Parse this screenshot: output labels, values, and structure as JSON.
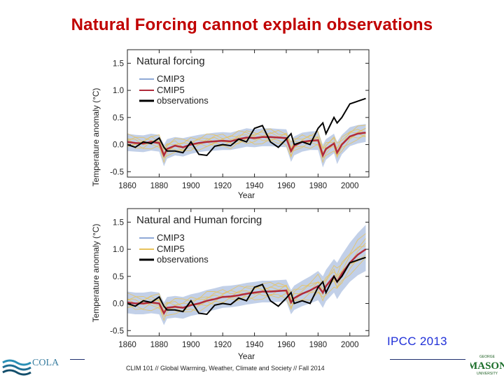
{
  "slide": {
    "title": "Natural Forcing cannot explain observations",
    "source": "IPCC 2013",
    "footer": "CLIM 101 // Global Warming, Weather, Climate and Society // Fall 2014",
    "logo_left_text": "COLA",
    "logo_right_text": "MASON",
    "logo_right_small_top": "GEORGE",
    "logo_right_small_bottom": "UNIVERSITY"
  },
  "colors": {
    "title": "#c00000",
    "source": "#1f2fd8",
    "cmip3": "#8fa9d6",
    "cmip5": "#e8c25a",
    "mean_red": "#b02a3a",
    "observations": "#000000"
  },
  "chart_data": [
    {
      "type": "line",
      "title": "Natural forcing",
      "xlabel": "Year",
      "ylabel": "Temperature anomaly (°C)",
      "xlim": [
        1860,
        2012
      ],
      "ylim": [
        -0.6,
        1.75
      ],
      "xticks": [
        1860,
        1880,
        1900,
        1920,
        1940,
        1960,
        1980,
        2000
      ],
      "yticks": [
        -0.5,
        0.0,
        0.5,
        1.0,
        1.5
      ],
      "ytick_labels": [
        "-0.5",
        "0.0",
        "0.5",
        "1.0",
        "1.5"
      ],
      "legend": [
        "CMIP3",
        "CMIP5",
        "observations"
      ],
      "legend_position": "top-left",
      "x": [
        1860,
        1865,
        1870,
        1875,
        1880,
        1883,
        1885,
        1890,
        1895,
        1900,
        1905,
        1910,
        1915,
        1920,
        1925,
        1930,
        1935,
        1940,
        1945,
        1950,
        1955,
        1960,
        1963,
        1965,
        1970,
        1975,
        1980,
        1983,
        1985,
        1990,
        1992,
        1995,
        2000,
        2005,
        2010
      ],
      "series": [
        {
          "name": "multi-model mean",
          "values": [
            0.05,
            0.03,
            0.02,
            0.05,
            0.03,
            -0.2,
            -0.08,
            -0.02,
            -0.05,
            0.0,
            0.03,
            0.05,
            0.06,
            0.07,
            0.06,
            0.1,
            0.13,
            0.12,
            0.14,
            0.14,
            0.13,
            0.12,
            -0.12,
            -0.02,
            0.05,
            0.07,
            0.08,
            -0.2,
            -0.08,
            0.02,
            -0.15,
            0.0,
            0.15,
            0.2,
            0.22
          ]
        },
        {
          "name": "observations",
          "values": [
            0.0,
            -0.05,
            0.05,
            0.02,
            0.12,
            -0.05,
            -0.12,
            -0.12,
            -0.15,
            0.05,
            -0.18,
            -0.2,
            -0.03,
            0.0,
            -0.02,
            0.1,
            0.05,
            0.3,
            0.35,
            0.05,
            -0.05,
            0.1,
            0.2,
            0.0,
            0.05,
            0.0,
            0.3,
            0.4,
            0.2,
            0.5,
            0.4,
            0.5,
            0.75,
            0.8,
            0.85
          ]
        },
        {
          "name": "CMIP5 upper",
          "values": [
            0.2,
            0.18,
            0.17,
            0.2,
            0.18,
            0.0,
            0.1,
            0.14,
            0.12,
            0.15,
            0.18,
            0.2,
            0.22,
            0.23,
            0.22,
            0.26,
            0.3,
            0.28,
            0.3,
            0.3,
            0.29,
            0.28,
            0.06,
            0.15,
            0.22,
            0.24,
            0.25,
            0.0,
            0.1,
            0.2,
            0.05,
            0.18,
            0.32,
            0.36,
            0.38
          ]
        },
        {
          "name": "CMIP5 lower",
          "values": [
            -0.12,
            -0.13,
            -0.14,
            -0.11,
            -0.13,
            -0.4,
            -0.26,
            -0.2,
            -0.22,
            -0.17,
            -0.14,
            -0.12,
            -0.11,
            -0.1,
            -0.1,
            -0.07,
            -0.04,
            -0.05,
            -0.03,
            -0.03,
            -0.04,
            -0.05,
            -0.32,
            -0.2,
            -0.13,
            -0.1,
            -0.1,
            -0.42,
            -0.28,
            -0.16,
            -0.36,
            -0.18,
            -0.03,
            0.02,
            0.05
          ]
        }
      ]
    },
    {
      "type": "line",
      "title": "Natural and Human forcing",
      "xlabel": "Year",
      "ylabel": "Temperature anomaly (°C)",
      "xlim": [
        1860,
        2012
      ],
      "ylim": [
        -0.6,
        1.75
      ],
      "xticks": [
        1860,
        1880,
        1900,
        1920,
        1940,
        1960,
        1980,
        2000
      ],
      "yticks": [
        -0.5,
        0.0,
        0.5,
        1.0,
        1.5
      ],
      "ytick_labels": [
        "-0.5",
        "0.0",
        "0.5",
        "1.0",
        "1.5"
      ],
      "legend": [
        "CMIP3",
        "CMIP5",
        "observations"
      ],
      "legend_position": "top-left",
      "x": [
        1860,
        1865,
        1870,
        1875,
        1880,
        1883,
        1885,
        1890,
        1895,
        1900,
        1905,
        1910,
        1915,
        1920,
        1925,
        1930,
        1935,
        1940,
        1945,
        1950,
        1955,
        1960,
        1963,
        1965,
        1970,
        1975,
        1980,
        1983,
        1985,
        1990,
        1992,
        1995,
        2000,
        2005,
        2010
      ],
      "series": [
        {
          "name": "multi-model mean",
          "values": [
            0.02,
            0.0,
            0.0,
            0.02,
            0.0,
            -0.18,
            -0.08,
            -0.06,
            -0.08,
            -0.03,
            0.0,
            0.05,
            0.08,
            0.12,
            0.13,
            0.15,
            0.18,
            0.2,
            0.22,
            0.22,
            0.23,
            0.24,
            0.02,
            0.1,
            0.18,
            0.24,
            0.32,
            0.2,
            0.32,
            0.5,
            0.4,
            0.55,
            0.75,
            0.9,
            1.0
          ]
        },
        {
          "name": "observations",
          "values": [
            0.0,
            -0.05,
            0.05,
            0.02,
            0.12,
            -0.05,
            -0.12,
            -0.12,
            -0.15,
            0.05,
            -0.18,
            -0.2,
            -0.03,
            0.0,
            -0.02,
            0.1,
            0.05,
            0.3,
            0.35,
            0.05,
            -0.05,
            0.1,
            0.2,
            0.0,
            0.05,
            0.0,
            0.3,
            0.4,
            0.2,
            0.5,
            0.4,
            0.5,
            0.75,
            0.8,
            0.85
          ]
        },
        {
          "name": "CMIP5 upper",
          "values": [
            0.22,
            0.2,
            0.2,
            0.22,
            0.2,
            0.02,
            0.12,
            0.14,
            0.12,
            0.17,
            0.2,
            0.25,
            0.28,
            0.32,
            0.33,
            0.35,
            0.38,
            0.4,
            0.42,
            0.42,
            0.43,
            0.44,
            0.25,
            0.33,
            0.42,
            0.5,
            0.6,
            0.5,
            0.62,
            0.82,
            0.75,
            0.9,
            1.12,
            1.3,
            1.45
          ]
        },
        {
          "name": "CMIP5 lower",
          "values": [
            -0.18,
            -0.2,
            -0.2,
            -0.18,
            -0.2,
            -0.4,
            -0.28,
            -0.26,
            -0.28,
            -0.23,
            -0.2,
            -0.15,
            -0.12,
            -0.08,
            -0.07,
            -0.05,
            -0.02,
            0.0,
            0.02,
            0.02,
            0.03,
            0.04,
            -0.2,
            -0.12,
            -0.05,
            0.0,
            0.06,
            -0.08,
            0.04,
            0.2,
            0.08,
            0.22,
            0.4,
            0.52,
            0.6
          ]
        }
      ]
    }
  ]
}
